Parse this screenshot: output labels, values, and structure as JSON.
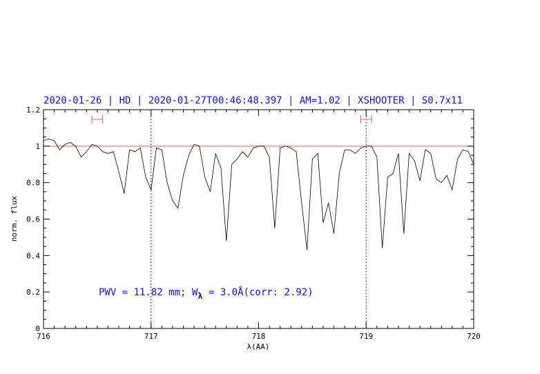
{
  "chart_data": {
    "type": "line",
    "title": "2020-01-26 | HD | 2020-01-27T00:46:48.397 | AM=1.02 | XSHOOTER | S0.7x11",
    "xlabel": "λ(AA)",
    "ylabel": "norm. flux",
    "xlim": [
      716,
      720
    ],
    "ylim": [
      0,
      1.2
    ],
    "x_ticks": [
      716,
      717,
      718,
      719,
      720
    ],
    "y_ticks": [
      0,
      0.2,
      0.4,
      0.6,
      0.8,
      1,
      1.2
    ],
    "x_tick_labels": [
      "716",
      "717",
      "718",
      "719",
      "720"
    ],
    "y_tick_labels": [
      "0",
      "0.2",
      "0.4",
      "0.6",
      "0.8",
      "1",
      "1.2"
    ],
    "annotation": {
      "prefix": "PWV = 11.82 mm; W",
      "subscript": "λ",
      "suffix": " = 3.0Å(corr: 2.92)"
    },
    "reference_line": {
      "y": 1.0,
      "color": "#e06060"
    },
    "vertical_markers": [
      717.0,
      719.0
    ],
    "continuum_windows": [
      [
        716.45,
        716.55
      ],
      [
        718.95,
        719.05
      ]
    ],
    "line_color": "#000000",
    "reference_color": "#e06060",
    "series": [
      {
        "x": [
          716.0,
          716.05,
          716.1,
          716.15,
          716.2,
          716.25,
          716.3,
          716.35,
          716.4,
          716.45,
          716.5,
          716.55,
          716.6,
          716.65,
          716.7,
          716.75,
          716.8,
          716.85,
          716.9,
          716.95,
          717.0,
          717.05,
          717.1,
          717.15,
          717.2,
          717.25,
          717.3,
          717.35,
          717.4,
          717.45,
          717.5,
          717.55,
          717.6,
          717.65,
          717.7,
          717.75,
          717.8,
          717.85,
          717.9,
          717.95,
          718.0,
          718.05,
          718.1,
          718.15,
          718.2,
          718.25,
          718.3,
          718.35,
          718.4,
          718.45,
          718.5,
          718.55,
          718.6,
          718.65,
          718.7,
          718.75,
          718.8,
          718.85,
          718.9,
          718.95,
          719.0,
          719.05,
          719.1,
          719.15,
          719.2,
          719.25,
          719.3,
          719.35,
          719.4,
          719.45,
          719.5,
          719.55,
          719.6,
          719.65,
          719.7,
          719.75,
          719.8,
          719.85,
          719.9,
          719.95,
          720.0
        ],
        "y": [
          1.03,
          1.04,
          1.03,
          0.98,
          1.01,
          1.02,
          1.0,
          0.94,
          0.97,
          1.01,
          1.0,
          0.97,
          0.96,
          0.97,
          0.86,
          0.74,
          0.98,
          0.97,
          0.99,
          0.83,
          0.76,
          0.99,
          0.98,
          0.8,
          0.7,
          0.66,
          0.84,
          0.95,
          1.01,
          1.0,
          0.83,
          0.75,
          0.96,
          0.88,
          0.48,
          0.9,
          0.93,
          0.97,
          0.94,
          0.99,
          1.0,
          1.0,
          0.94,
          0.55,
          0.99,
          1.0,
          0.99,
          0.97,
          0.69,
          0.43,
          0.93,
          0.96,
          0.58,
          0.69,
          0.52,
          0.85,
          0.98,
          0.98,
          0.96,
          0.99,
          1.0,
          1.0,
          0.94,
          0.44,
          0.83,
          0.85,
          0.96,
          0.52,
          0.96,
          0.92,
          0.81,
          0.98,
          0.96,
          0.82,
          0.8,
          0.84,
          0.76,
          0.93,
          0.98,
          0.97,
          0.9
        ]
      }
    ]
  }
}
